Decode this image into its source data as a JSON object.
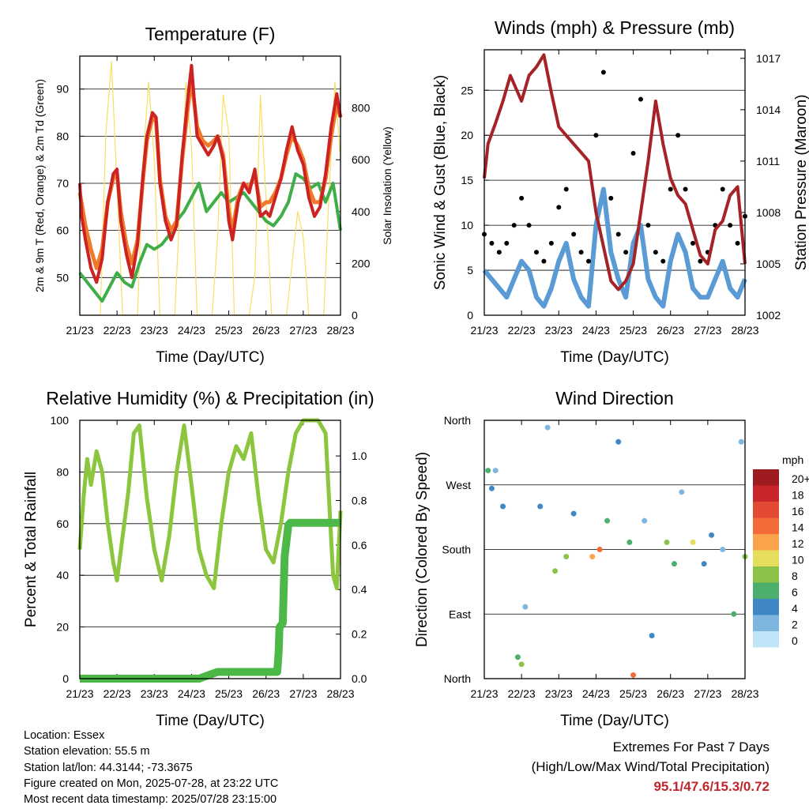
{
  "time_ticks": [
    "21/23",
    "22/23",
    "23/23",
    "24/23",
    "25/23",
    "26/23",
    "27/23",
    "28/23"
  ],
  "colors": {
    "temp_2m": "#cc2222",
    "temp_9m": "#f07a2a",
    "dewpoint": "#3fae49",
    "solar": "#f7df62",
    "wind_sonic": "#5b9bd5",
    "wind_gust": "#000000",
    "pressure": "#a52226",
    "rh": "#8cc63f",
    "precip": "#4cb848",
    "extremes_text": "#c0262d"
  },
  "chart_data": [
    {
      "type": "line",
      "title": "Temperature (F)",
      "xlabel": "Time (Day/UTC)",
      "ylabel": "2m & 9m T (Red, Orange) & 2m Td (Green)",
      "ylabel_right": "Solar Insolation (Yellow)",
      "x_ticks": [
        "21/23",
        "22/23",
        "23/23",
        "24/23",
        "25/23",
        "26/23",
        "27/23",
        "28/23"
      ],
      "ylim": [
        42,
        97
      ],
      "y_ticks": [
        50,
        60,
        70,
        80,
        90
      ],
      "ylim_right": [
        0,
        1000
      ],
      "y_ticks_right": [
        0,
        200,
        400,
        600,
        800
      ],
      "grid": "horizontal",
      "series": [
        {
          "key": "temp_2m",
          "x": [
            0,
            0.05,
            0.15,
            0.3,
            0.45,
            0.6,
            0.75,
            0.9,
            1.0,
            1.1,
            1.25,
            1.4,
            1.55,
            1.7,
            1.8,
            1.95,
            2.05,
            2.15,
            2.3,
            2.45,
            2.6,
            2.75,
            2.9,
            3.0,
            3.15,
            3.3,
            3.45,
            3.6,
            3.7,
            3.85,
            4.0,
            4.1,
            4.25,
            4.4,
            4.55,
            4.7,
            4.85,
            5.0,
            5.1,
            5.25,
            5.4,
            5.55,
            5.7,
            5.85,
            6.0,
            6.15,
            6.3,
            6.45,
            6.6,
            6.75,
            6.9,
            7.0
          ],
          "y": [
            70,
            63,
            58,
            52,
            49,
            54,
            66,
            72,
            73,
            62,
            55,
            50,
            57,
            72,
            80,
            85,
            84,
            70,
            62,
            58,
            61,
            76,
            88,
            95,
            80,
            78,
            76,
            78,
            80,
            75,
            62,
            58,
            66,
            70,
            68,
            73,
            63,
            64,
            63,
            67,
            71,
            77,
            82,
            77,
            74,
            67,
            63,
            65,
            72,
            82,
            89,
            84
          ]
        },
        {
          "key": "temp_9m",
          "x": [
            0,
            0.15,
            0.3,
            0.45,
            0.6,
            0.75,
            0.9,
            1.0,
            1.1,
            1.25,
            1.4,
            1.55,
            1.7,
            1.8,
            1.95,
            2.05,
            2.15,
            2.3,
            2.45,
            2.6,
            2.75,
            2.9,
            3.0,
            3.15,
            3.3,
            3.45,
            3.6,
            3.7,
            3.85,
            4.0,
            4.1,
            4.25,
            4.4,
            4.55,
            4.7,
            4.85,
            5.0,
            5.1,
            5.25,
            5.4,
            5.55,
            5.7,
            5.85,
            6.0,
            6.15,
            6.3,
            6.45,
            6.6,
            6.75,
            6.9,
            7.0
          ],
          "y": [
            68,
            61,
            56,
            52,
            56,
            66,
            71,
            72,
            64,
            57,
            53,
            58,
            71,
            79,
            84,
            83,
            71,
            63,
            60,
            62,
            75,
            86,
            92,
            82,
            79,
            78,
            79,
            80,
            76,
            64,
            60,
            67,
            70,
            69,
            72,
            65,
            66,
            66,
            68,
            71,
            76,
            80,
            78,
            75,
            69,
            66,
            66,
            71,
            80,
            87,
            84
          ]
        },
        {
          "key": "dewpoint",
          "x": [
            0,
            0.2,
            0.4,
            0.6,
            0.8,
            1.0,
            1.2,
            1.4,
            1.6,
            1.8,
            2.0,
            2.2,
            2.4,
            2.6,
            2.8,
            3.0,
            3.2,
            3.4,
            3.6,
            3.8,
            4.0,
            4.2,
            4.4,
            4.6,
            4.8,
            5.0,
            5.2,
            5.4,
            5.6,
            5.8,
            6.0,
            6.2,
            6.4,
            6.6,
            6.8,
            7.0
          ],
          "y": [
            51,
            49,
            47,
            45,
            48,
            51,
            49,
            48,
            53,
            57,
            56,
            57,
            59,
            62,
            64,
            67,
            70,
            64,
            66,
            68,
            66,
            67,
            68,
            66,
            64,
            62,
            61,
            63,
            66,
            72,
            71,
            69,
            70,
            66,
            70,
            60
          ]
        },
        {
          "key": "solar",
          "axis": "right",
          "x": [
            0,
            0.25,
            0.55,
            0.7,
            0.85,
            1.0,
            1.15,
            1.3,
            1.55,
            1.7,
            1.85,
            2.0,
            2.15,
            2.3,
            2.55,
            2.7,
            2.85,
            3.0,
            3.15,
            3.3,
            3.55,
            3.7,
            3.85,
            4.0,
            4.15,
            4.3,
            4.55,
            4.7,
            4.85,
            5.0,
            5.15,
            5.3,
            5.55,
            5.7,
            5.85,
            6.0,
            6.15,
            6.3,
            6.55,
            6.7,
            6.85,
            7.0
          ],
          "y": [
            0,
            0,
            0,
            700,
            980,
            500,
            0,
            0,
            0,
            600,
            900,
            600,
            0,
            0,
            0,
            450,
            900,
            650,
            0,
            0,
            0,
            300,
            850,
            700,
            0,
            0,
            0,
            150,
            850,
            450,
            0,
            0,
            0,
            200,
            400,
            300,
            0,
            0,
            0,
            500,
            900,
            600
          ]
        }
      ]
    },
    {
      "type": "scatter",
      "title": "Winds (mph) & Pressure (mb)",
      "xlabel": "Time (Day/UTC)",
      "ylabel": "Sonic Wind & Gust (Blue, Black)",
      "ylabel_right": "Station Pressure (Maroon)",
      "x_ticks": [
        "21/23",
        "22/23",
        "23/23",
        "24/23",
        "25/23",
        "26/23",
        "27/23",
        "28/23"
      ],
      "ylim": [
        0,
        29.5
      ],
      "y_ticks": [
        0,
        5,
        10,
        15,
        20,
        25
      ],
      "ylim_right": [
        1002,
        1017.5
      ],
      "y_ticks_right": [
        1002,
        1005,
        1008,
        1011,
        1014,
        1017
      ],
      "grid": "horizontal",
      "series": [
        {
          "key": "wind_sonic",
          "x": [
            0,
            0.2,
            0.4,
            0.6,
            0.8,
            1.0,
            1.2,
            1.4,
            1.6,
            1.8,
            2.0,
            2.2,
            2.4,
            2.6,
            2.8,
            3.0,
            3.2,
            3.4,
            3.6,
            3.8,
            4.0,
            4.2,
            4.4,
            4.6,
            4.8,
            5.0,
            5.2,
            5.4,
            5.6,
            5.8,
            6.0,
            6.2,
            6.4,
            6.6,
            6.8,
            7.0
          ],
          "y": [
            5,
            4,
            3,
            2,
            4,
            6,
            5,
            2,
            1,
            3,
            6,
            8,
            4,
            2,
            1,
            10,
            14,
            7,
            4,
            2,
            8,
            10,
            4,
            2,
            1,
            6,
            9,
            7,
            3,
            2,
            2,
            4,
            6,
            3,
            2,
            4
          ]
        },
        {
          "key": "wind_gust",
          "x": [
            0,
            0.2,
            0.4,
            0.6,
            0.8,
            1.0,
            1.2,
            1.4,
            1.6,
            1.8,
            2.0,
            2.2,
            2.4,
            2.6,
            2.8,
            3.0,
            3.2,
            3.4,
            3.6,
            3.8,
            4.0,
            4.2,
            4.4,
            4.6,
            4.8,
            5.0,
            5.2,
            5.4,
            5.6,
            5.8,
            6.0,
            6.2,
            6.4,
            6.6,
            6.8,
            7.0
          ],
          "y": [
            9,
            8,
            7,
            8,
            10,
            13,
            10,
            7,
            6,
            8,
            12,
            14,
            9,
            7,
            6,
            20,
            27,
            13,
            9,
            7,
            18,
            24,
            10,
            7,
            6,
            14,
            20,
            14,
            8,
            6,
            7,
            10,
            14,
            10,
            8,
            11
          ]
        },
        {
          "key": "pressure",
          "axis": "right",
          "x": [
            0,
            0.1,
            0.3,
            0.5,
            0.7,
            0.9,
            1.0,
            1.2,
            1.4,
            1.6,
            1.8,
            2.0,
            2.2,
            2.4,
            2.6,
            2.8,
            3.0,
            3.2,
            3.4,
            3.6,
            3.8,
            4.0,
            4.2,
            4.4,
            4.6,
            4.8,
            5.0,
            5.2,
            5.4,
            5.6,
            5.8,
            6.0,
            6.2,
            6.4,
            6.6,
            6.8,
            7.0
          ],
          "y": [
            1010,
            1012,
            1013.2,
            1014.5,
            1016,
            1015,
            1014.5,
            1016,
            1016.5,
            1017.2,
            1015,
            1013,
            1012.5,
            1012,
            1011.5,
            1011,
            1008,
            1006,
            1004,
            1003.5,
            1004,
            1005,
            1008,
            1011,
            1014.5,
            1012,
            1010,
            1009,
            1008.5,
            1007,
            1005.5,
            1005,
            1007,
            1007.5,
            1009,
            1009.5,
            1005
          ]
        }
      ]
    },
    {
      "type": "line",
      "title": "Relative Humidity (%) & Precipitation (in)",
      "xlabel": "Time (Day/UTC)",
      "ylabel": "Percent & Total Rainfall",
      "x_ticks": [
        "21/23",
        "22/23",
        "23/23",
        "24/23",
        "25/23",
        "26/23",
        "27/23",
        "28/23"
      ],
      "ylim": [
        0,
        100
      ],
      "y_ticks": [
        0,
        20,
        40,
        60,
        80,
        100
      ],
      "ylim_right": [
        0,
        1.16
      ],
      "y_ticks_right": [
        0.0,
        0.2,
        0.4,
        0.6,
        0.8,
        1.0
      ],
      "grid": "horizontal",
      "series": [
        {
          "key": "rh",
          "x": [
            0,
            0.1,
            0.2,
            0.3,
            0.45,
            0.6,
            0.75,
            0.9,
            1.0,
            1.15,
            1.3,
            1.45,
            1.6,
            1.8,
            2.0,
            2.2,
            2.4,
            2.6,
            2.8,
            3.0,
            3.2,
            3.4,
            3.6,
            3.8,
            4.0,
            4.2,
            4.4,
            4.6,
            4.8,
            5.0,
            5.2,
            5.4,
            5.6,
            5.8,
            6.0,
            6.2,
            6.4,
            6.6,
            6.8,
            6.9,
            7.0
          ],
          "y": [
            50,
            70,
            85,
            75,
            88,
            80,
            60,
            45,
            38,
            55,
            72,
            95,
            98,
            70,
            50,
            38,
            55,
            80,
            98,
            75,
            50,
            40,
            35,
            60,
            80,
            90,
            85,
            95,
            70,
            50,
            45,
            60,
            80,
            95,
            100,
            100,
            100,
            95,
            40,
            35,
            65
          ]
        },
        {
          "key": "precip",
          "axis": "right",
          "x": [
            0,
            3.2,
            3.7,
            5.3,
            5.34,
            5.36,
            5.45,
            5.5,
            5.6,
            5.65,
            5.8,
            7.0
          ],
          "y": [
            0.0,
            0.0,
            0.03,
            0.03,
            0.12,
            0.23,
            0.25,
            0.55,
            0.69,
            0.7,
            0.7,
            0.7
          ]
        }
      ]
    },
    {
      "type": "scatter",
      "title": "Wind Direction",
      "xlabel": "Time (Day/UTC)",
      "ylabel": "Direction (Colored By Speed)",
      "x_ticks": [
        "21/23",
        "22/23",
        "23/23",
        "24/23",
        "25/23",
        "26/23",
        "27/23",
        "28/23"
      ],
      "y_categories": [
        "North",
        "East",
        "South",
        "West",
        "North"
      ],
      "ylim": [
        0,
        360
      ],
      "grid": "horizontal",
      "legend_title": "mph",
      "legend_labels": [
        "20+",
        "18",
        "16",
        "14",
        "12",
        "10",
        "8",
        "6",
        "4",
        "2",
        "0"
      ],
      "legend_colors": [
        "#9e1b1f",
        "#c8262b",
        "#e24a33",
        "#f26b38",
        "#f9a44a",
        "#e5de5c",
        "#8bc34a",
        "#4caf6e",
        "#3f88c5",
        "#7fb6e0",
        "#bfe3f7"
      ],
      "legend_placement": "right",
      "series": [
        {
          "key": "direction",
          "x": [
            0.1,
            0.2,
            0.3,
            0.5,
            0.9,
            1.0,
            1.1,
            1.5,
            1.7,
            1.9,
            2.2,
            2.4,
            2.9,
            3.1,
            3.3,
            3.6,
            3.9,
            4.0,
            4.3,
            4.5,
            4.9,
            5.1,
            5.3,
            5.6,
            5.9,
            6.1,
            6.4,
            6.7,
            6.9,
            7.0
          ],
          "y": [
            290,
            265,
            290,
            240,
            30,
            20,
            100,
            240,
            350,
            150,
            170,
            230,
            170,
            180,
            220,
            330,
            190,
            5,
            220,
            60,
            190,
            160,
            260,
            190,
            160,
            200,
            180,
            90,
            330,
            170
          ],
          "speed": [
            6,
            4,
            2,
            3,
            6,
            8,
            2,
            4,
            2,
            8,
            7,
            3,
            12,
            14,
            6,
            4,
            6,
            14,
            2,
            3,
            8,
            6,
            2,
            10,
            4,
            3,
            2,
            6,
            1,
            8
          ]
        }
      ]
    }
  ],
  "info": {
    "location": "Location: Essex",
    "elevation": "Station elevation: 55.5 m",
    "latlon": "Station lat/lon: 44.3144; -73.3675",
    "created": "Figure created on Mon, 2025-07-28, at 23:22 UTC",
    "timestamp": "Most recent data timestamp: 2025/07/28 23:15:00"
  },
  "extremes": {
    "line1": "Extremes For Past 7 Days",
    "line2": "(High/Low/Max Wind/Total Precipitation)",
    "values": "95.1/47.6/15.3/0.72"
  }
}
